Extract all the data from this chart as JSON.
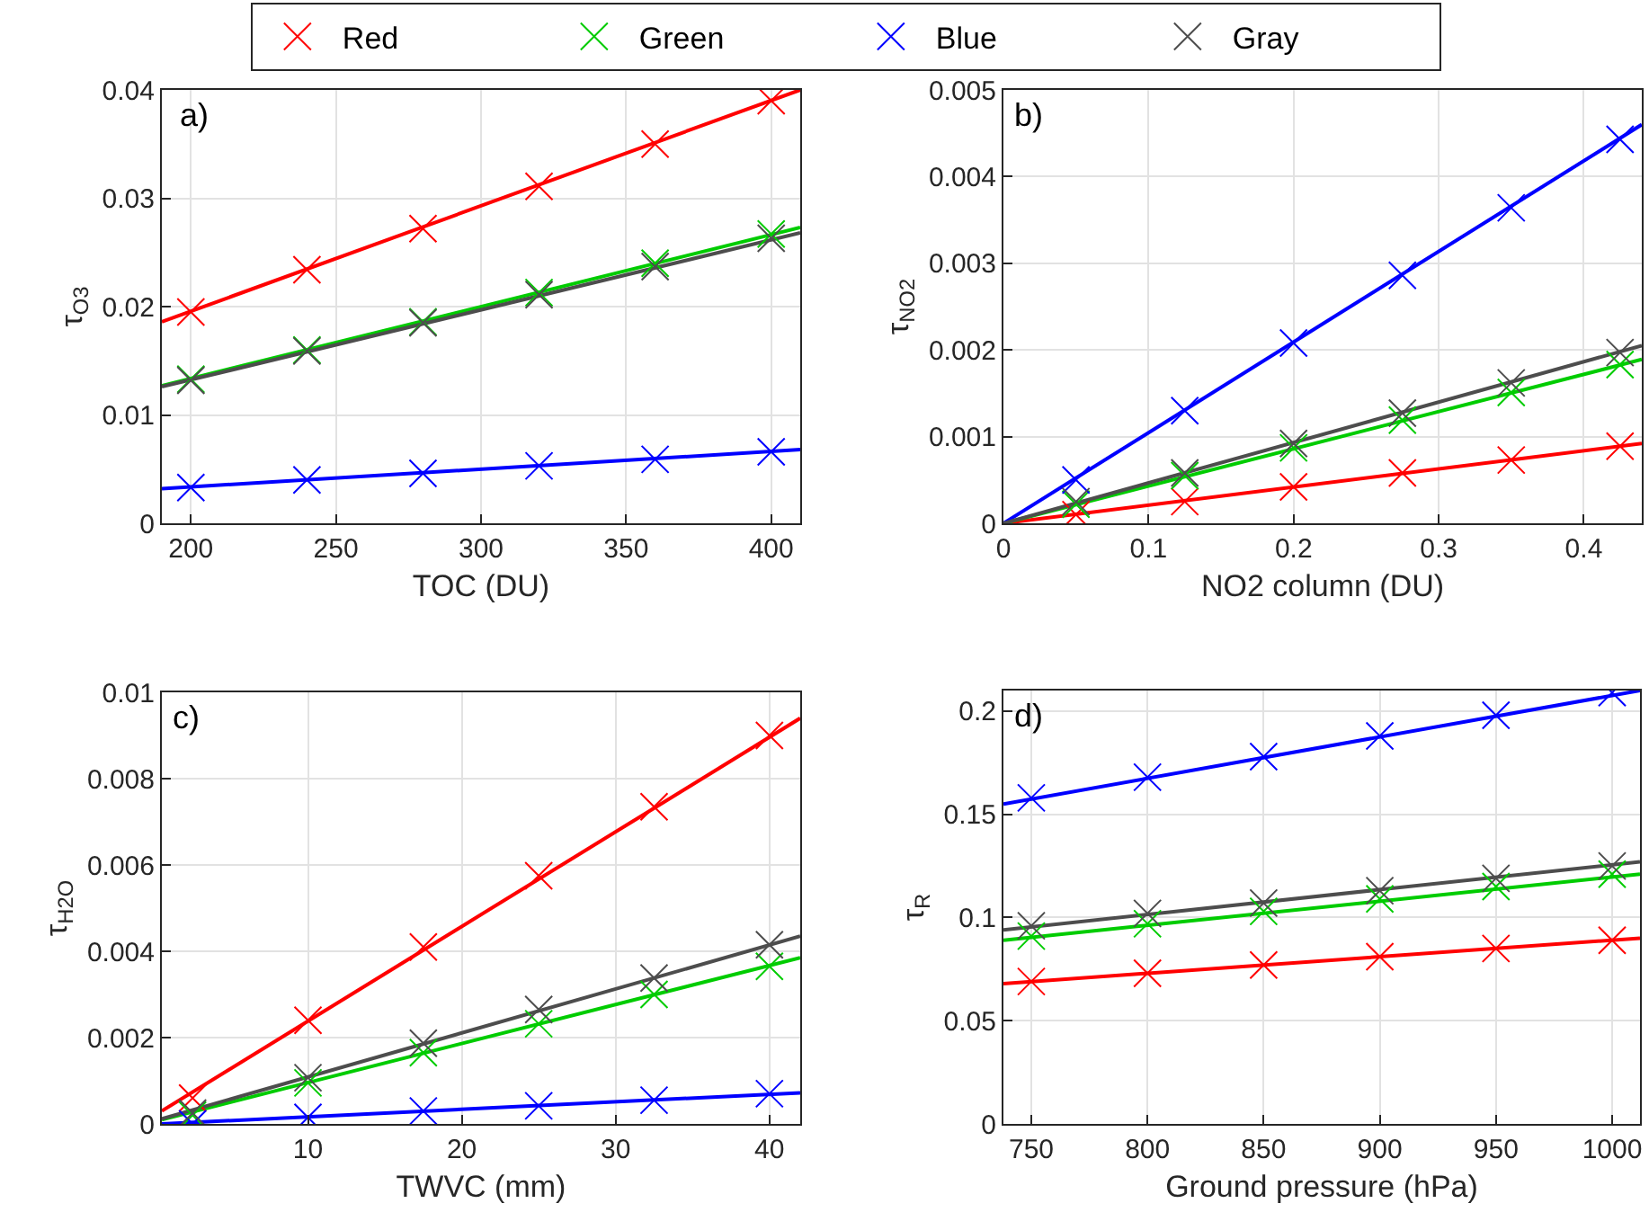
{
  "chart_data": [
    {
      "type": "scatter",
      "xlabel": "TOC (DU)",
      "ylabel": "τ$_{O3}$",
      "annotations": [
        "a)"
      ],
      "xlim": [
        190,
        410
      ],
      "xticks": [
        200,
        250,
        300,
        350,
        400
      ],
      "ylim": [
        0,
        0.04
      ],
      "yticks": [
        0,
        0.01,
        0.02,
        0.03,
        0.04
      ],
      "grid": true,
      "legend": "top",
      "line_style": "solid",
      "series": [
        {
          "name": "Red",
          "color": "#ff0000",
          "marker": "cross",
          "x": [
            200,
            240,
            280,
            320,
            360,
            400
          ],
          "values": [
            0.0195,
            0.0234,
            0.0272,
            0.0311,
            0.035,
            0.039
          ]
        },
        {
          "name": "Green",
          "color": "#00cc00",
          "marker": "cross",
          "x": [
            200,
            240,
            280,
            320,
            360,
            400
          ],
          "values": [
            0.0133,
            0.016,
            0.0186,
            0.0213,
            0.024,
            0.0267
          ]
        },
        {
          "name": "Blue",
          "color": "#0000ff",
          "marker": "cross",
          "x": [
            200,
            240,
            280,
            320,
            360,
            400
          ],
          "values": [
            0.0033,
            0.004,
            0.0046,
            0.0053,
            0.0059,
            0.0066
          ]
        },
        {
          "name": "Gray",
          "color": "#4d4d4d",
          "marker": "cross",
          "x": [
            200,
            240,
            280,
            320,
            360,
            400
          ],
          "values": [
            0.0132,
            0.0159,
            0.0185,
            0.0211,
            0.0237,
            0.0263
          ]
        },
        {
          "type": "line",
          "color": "#ff0000",
          "x": [
            190,
            410
          ],
          "values": [
            0.0186,
            0.04
          ]
        },
        {
          "type": "line",
          "color": "#00cc00",
          "x": [
            190,
            410
          ],
          "values": [
            0.0127,
            0.0273
          ]
        },
        {
          "type": "line",
          "color": "#0000ff",
          "x": [
            190,
            410
          ],
          "values": [
            0.0032,
            0.0068
          ]
        },
        {
          "type": "line",
          "color": "#4d4d4d",
          "x": [
            190,
            410
          ],
          "values": [
            0.0126,
            0.0268
          ]
        }
      ]
    },
    {
      "type": "scatter",
      "xlabel": "NO2 column (DU)",
      "ylabel": "τ$_{NO2}$",
      "annotations": [
        "b)"
      ],
      "xlim": [
        0,
        0.44
      ],
      "xticks": [
        0,
        0.1,
        0.2,
        0.3,
        0.4
      ],
      "ylim": [
        0,
        0.005
      ],
      "yticks": [
        0,
        0.001,
        0.002,
        0.003,
        0.004,
        0.005
      ],
      "grid": true,
      "line_style": "solid",
      "series": [
        {
          "color": "#ff0000",
          "marker": "cross",
          "x": [
            0.05,
            0.125,
            0.2,
            0.275,
            0.35,
            0.425
          ],
          "values": [
            0.0001,
            0.00025,
            0.00042,
            0.00058,
            0.00073,
            0.00089
          ]
        },
        {
          "color": "#00cc00",
          "marker": "cross",
          "x": [
            0.05,
            0.125,
            0.2,
            0.275,
            0.35,
            0.425
          ],
          "values": [
            0.00022,
            0.00055,
            0.00087,
            0.00119,
            0.00151,
            0.00183
          ]
        },
        {
          "color": "#0000ff",
          "marker": "cross",
          "x": [
            0.05,
            0.125,
            0.2,
            0.275,
            0.35,
            0.425
          ],
          "values": [
            0.0005,
            0.0013,
            0.00208,
            0.00286,
            0.00364,
            0.00443
          ]
        },
        {
          "color": "#4d4d4d",
          "marker": "cross",
          "x": [
            0.05,
            0.125,
            0.2,
            0.275,
            0.35,
            0.425
          ],
          "values": [
            0.00025,
            0.00058,
            0.00092,
            0.00127,
            0.00162,
            0.00197
          ]
        },
        {
          "type": "line",
          "color": "#ff0000",
          "x": [
            0,
            0.44
          ],
          "values": [
            0,
            0.00092
          ]
        },
        {
          "type": "line",
          "color": "#00cc00",
          "x": [
            0,
            0.44
          ],
          "values": [
            0,
            0.00189
          ]
        },
        {
          "type": "line",
          "color": "#0000ff",
          "x": [
            0,
            0.44
          ],
          "values": [
            0,
            0.0046
          ]
        },
        {
          "type": "line",
          "color": "#4d4d4d",
          "x": [
            0,
            0.44
          ],
          "values": [
            0,
            0.00205
          ]
        }
      ]
    },
    {
      "type": "scatter",
      "xlabel": "TWVC (mm)",
      "ylabel": "τ$_{H2O}$",
      "annotations": [
        "c)"
      ],
      "xlim": [
        0.5,
        42
      ],
      "xticks": [
        10,
        20,
        30,
        40
      ],
      "ylim": [
        0,
        0.01
      ],
      "yticks": [
        0,
        0.002,
        0.004,
        0.006,
        0.008,
        0.01
      ],
      "grid": true,
      "line_style": "solid",
      "series": [
        {
          "color": "#ff0000",
          "marker": "cross",
          "x": [
            2.5,
            10,
            17.5,
            25,
            32.5,
            40
          ],
          "values": [
            0.0006,
            0.0024,
            0.0041,
            0.00575,
            0.00735,
            0.009
          ]
        },
        {
          "color": "#00cc00",
          "marker": "cross",
          "x": [
            2.5,
            10,
            17.5,
            25,
            32.5,
            40
          ],
          "values": [
            0.0002,
            0.00095,
            0.00165,
            0.00232,
            0.003,
            0.00365
          ]
        },
        {
          "color": "#0000ff",
          "marker": "cross",
          "x": [
            2.5,
            10,
            17.5,
            25,
            32.5,
            40
          ],
          "values": [
            0,
            0.00015,
            0.0003,
            0.00042,
            0.00055,
            0.0007
          ]
        },
        {
          "color": "#4d4d4d",
          "marker": "cross",
          "x": [
            2.5,
            10,
            17.5,
            25,
            32.5,
            40
          ],
          "values": [
            0.00025,
            0.00107,
            0.00187,
            0.00265,
            0.00338,
            0.00415
          ]
        },
        {
          "type": "line",
          "color": "#ff0000",
          "x": [
            0.5,
            42
          ],
          "values": [
            0.0003,
            0.0094
          ]
        },
        {
          "type": "line",
          "color": "#00cc00",
          "x": [
            0.5,
            42
          ],
          "values": [
            0.0001,
            0.00385
          ]
        },
        {
          "type": "line",
          "color": "#0000ff",
          "x": [
            0.5,
            42
          ],
          "values": [
            0,
            0.00072
          ]
        },
        {
          "type": "line",
          "color": "#4d4d4d",
          "x": [
            0.5,
            42
          ],
          "values": [
            0.00012,
            0.00435
          ]
        }
      ]
    },
    {
      "type": "scatter",
      "xlabel": "Ground pressure (hPa)",
      "ylabel": "τ$_{R}$",
      "annotations": [
        "d)"
      ],
      "xlim": [
        738,
        1012
      ],
      "xticks": [
        750,
        800,
        850,
        900,
        950,
        1000
      ],
      "ylim": [
        0,
        0.21
      ],
      "yticks": [
        0,
        0.05,
        0.1,
        0.15,
        0.2
      ],
      "grid": true,
      "line_style": "solid",
      "series": [
        {
          "color": "#ff0000",
          "marker": "cross",
          "x": [
            750,
            800,
            850,
            900,
            950,
            1000
          ],
          "values": [
            0.069,
            0.073,
            0.077,
            0.081,
            0.085,
            0.089
          ]
        },
        {
          "color": "#00cc00",
          "marker": "cross",
          "x": [
            750,
            800,
            850,
            900,
            950,
            1000
          ],
          "values": [
            0.091,
            0.097,
            0.103,
            0.109,
            0.115,
            0.121
          ]
        },
        {
          "color": "#0000ff",
          "marker": "cross",
          "x": [
            750,
            800,
            850,
            900,
            950,
            1000
          ],
          "values": [
            0.158,
            0.168,
            0.178,
            0.188,
            0.198,
            0.209
          ]
        },
        {
          "color": "#4d4d4d",
          "marker": "cross",
          "x": [
            750,
            800,
            850,
            900,
            950,
            1000
          ],
          "values": [
            0.096,
            0.102,
            0.107,
            0.113,
            0.119,
            0.125
          ]
        },
        {
          "type": "line",
          "color": "#ff0000",
          "x": [
            738,
            1012
          ],
          "values": [
            0.068,
            0.09
          ]
        },
        {
          "type": "line",
          "color": "#00cc00",
          "x": [
            738,
            1012
          ],
          "values": [
            0.089,
            0.121
          ]
        },
        {
          "type": "line",
          "color": "#0000ff",
          "x": [
            738,
            1012
          ],
          "values": [
            0.155,
            0.21
          ]
        },
        {
          "type": "line",
          "color": "#4d4d4d",
          "x": [
            738,
            1012
          ],
          "values": [
            0.094,
            0.127
          ]
        }
      ]
    }
  ]
}
